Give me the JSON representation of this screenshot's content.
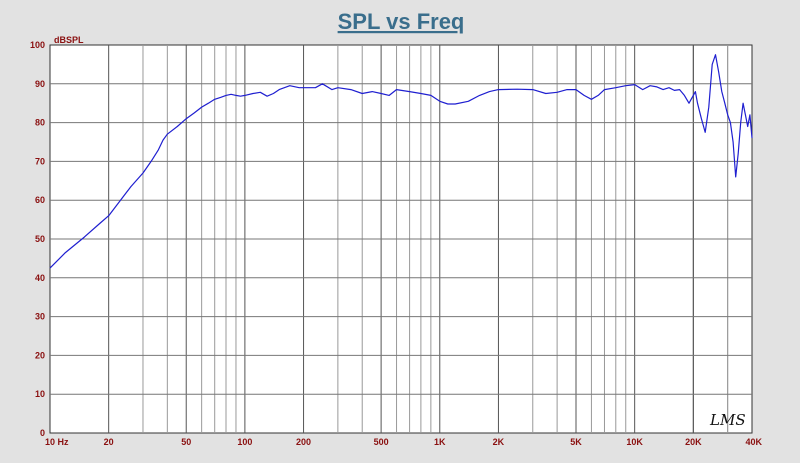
{
  "chart_data": {
    "type": "line",
    "title": "SPL vs Freq",
    "ylabel": "dBSPL",
    "xlabel": "",
    "x_scale": "log",
    "xlim": [
      10,
      40000
    ],
    "ylim": [
      0,
      100
    ],
    "grid": true,
    "y_ticks": [
      0,
      10,
      20,
      30,
      40,
      50,
      60,
      70,
      80,
      90,
      100
    ],
    "x_ticks": [
      {
        "value": 10,
        "label": "10  Hz"
      },
      {
        "value": 20,
        "label": "20"
      },
      {
        "value": 50,
        "label": "50"
      },
      {
        "value": 100,
        "label": "100"
      },
      {
        "value": 200,
        "label": "200"
      },
      {
        "value": 500,
        "label": "500"
      },
      {
        "value": 1000,
        "label": "1K"
      },
      {
        "value": 2000,
        "label": "2K"
      },
      {
        "value": 5000,
        "label": "5K"
      },
      {
        "value": 10000,
        "label": "10K"
      },
      {
        "value": 20000,
        "label": "20K"
      },
      {
        "value": 40000,
        "label": "40K"
      }
    ],
    "series": [
      {
        "color": "#1f1fd0",
        "x": [
          10,
          12,
          15,
          18,
          20,
          23,
          26,
          30,
          33,
          36,
          38,
          40,
          45,
          50,
          55,
          60,
          65,
          70,
          75,
          80,
          85,
          90,
          95,
          100,
          110,
          120,
          130,
          140,
          150,
          170,
          190,
          210,
          230,
          250,
          280,
          300,
          350,
          400,
          450,
          500,
          550,
          600,
          700,
          800,
          900,
          1000,
          1100,
          1200,
          1400,
          1600,
          1800,
          2000,
          2500,
          3000,
          3500,
          4000,
          4500,
          5000,
          5500,
          6000,
          6500,
          7000,
          8000,
          9000,
          10000,
          11000,
          12000,
          13000,
          14000,
          15000,
          16000,
          17000,
          18000,
          19000,
          20000,
          20500,
          21000,
          22000,
          23000,
          24000,
          25000,
          26000,
          27000,
          28000,
          29000,
          30000,
          31000,
          32000,
          33000,
          34000,
          35000,
          36000,
          37000,
          38000,
          39000,
          40000
        ],
        "y": [
          42.5,
          46.5,
          50.5,
          54,
          56,
          60,
          63.5,
          67,
          70,
          73,
          75.5,
          77,
          79,
          81,
          82.5,
          84,
          85,
          86,
          86.5,
          87,
          87.3,
          87,
          86.8,
          87,
          87.5,
          87.8,
          86.8,
          87.5,
          88.5,
          89.5,
          89,
          89,
          89,
          90,
          88.5,
          89,
          88.5,
          87.5,
          88,
          87.5,
          87,
          88.5,
          88,
          87.5,
          87,
          85.5,
          84.8,
          84.8,
          85.5,
          87,
          88,
          88.5,
          88.6,
          88.5,
          87.5,
          87.8,
          88.5,
          88.5,
          87,
          86,
          87,
          88.5,
          89,
          89.5,
          89.8,
          88.5,
          89.5,
          89.2,
          88.5,
          89,
          88.3,
          88.5,
          87,
          85,
          87,
          88,
          85,
          81,
          77.5,
          84,
          95,
          97.5,
          93,
          88,
          85,
          82,
          80,
          75,
          66,
          72,
          80,
          85,
          82,
          79,
          82,
          76
        ]
      }
    ]
  },
  "logo_text": "LMS"
}
